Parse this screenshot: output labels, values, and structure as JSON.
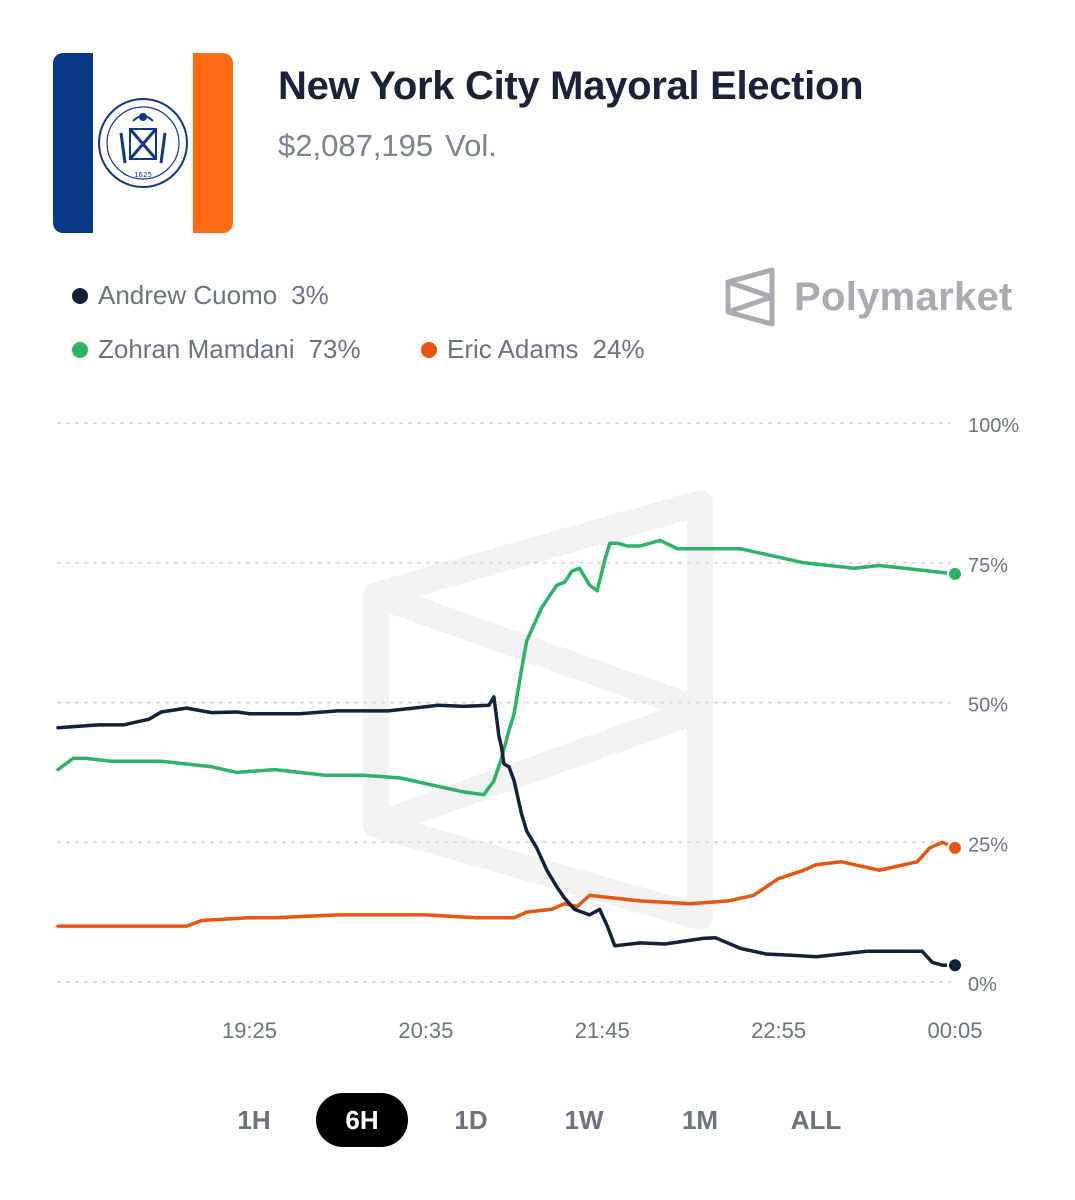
{
  "header": {
    "title": "New York City Mayoral Election",
    "volume": "$2,087,195",
    "volume_suffix": "Vol.",
    "flag_seal_text": "1625"
  },
  "brand": {
    "name": "Polymarket"
  },
  "colors": {
    "cuomo": "#14213d",
    "mamdani": "#2ab464",
    "adams": "#e9540f",
    "flag_blue": "#0b3889",
    "flag_orange": "#ff6a13",
    "grid": "#d9d9d9",
    "axis_text": "#6b7280"
  },
  "legend": [
    {
      "name": "Andrew Cuomo",
      "pct": "3%",
      "color": "#14213d"
    },
    {
      "name": "Zohran Mamdani",
      "pct": "73%",
      "color": "#2ab464"
    },
    {
      "name": "Eric Adams",
      "pct": "24%",
      "color": "#e9540f"
    }
  ],
  "timeframes": {
    "items": [
      "1H",
      "6H",
      "1D",
      "1W",
      "1M",
      "ALL"
    ],
    "active": "6H"
  },
  "chart_data": {
    "type": "line",
    "title": "",
    "xlabel": "",
    "ylabel": "",
    "x_ticks": [
      "19:25",
      "20:35",
      "21:45",
      "22:55",
      "00:05"
    ],
    "x_tick_minutes": [
      1165,
      1235,
      1305,
      1375,
      1445
    ],
    "xlim_minutes": [
      1089,
      1445
    ],
    "y_ticks": [
      "0%",
      "25%",
      "50%",
      "75%",
      "100%"
    ],
    "ylim": [
      0,
      100
    ],
    "grid": "horizontal dotted",
    "series": [
      {
        "name": "Andrew Cuomo",
        "color": "#14213d",
        "x": [
          1089,
          1105,
          1115,
          1125,
          1130,
          1140,
          1150,
          1160,
          1165,
          1175,
          1185,
          1200,
          1220,
          1230,
          1240,
          1250,
          1260,
          1262,
          1264,
          1265,
          1266,
          1268,
          1270,
          1273,
          1275,
          1279,
          1283,
          1287,
          1290,
          1294,
          1300,
          1304,
          1307,
          1310,
          1320,
          1330,
          1345,
          1350,
          1360,
          1370,
          1380,
          1390,
          1410,
          1425,
          1432,
          1436,
          1440,
          1445
        ],
        "y": [
          45.5,
          46,
          46,
          47,
          48.3,
          49,
          48.2,
          48.3,
          48,
          48,
          48,
          48.5,
          48.5,
          49,
          49.5,
          49.3,
          49.5,
          51,
          44,
          42,
          39,
          38.5,
          36,
          30,
          27,
          24,
          20,
          17,
          15,
          13,
          12,
          13,
          10,
          6.5,
          7,
          6.8,
          7.8,
          7.9,
          6,
          5,
          4.8,
          4.5,
          5.5,
          5.5,
          5.5,
          3.5,
          3,
          3
        ]
      },
      {
        "name": "Zohran Mamdani",
        "color": "#2ab464",
        "x": [
          1089,
          1095,
          1100,
          1110,
          1120,
          1130,
          1150,
          1160,
          1175,
          1195,
          1210,
          1225,
          1240,
          1250,
          1258,
          1262,
          1265,
          1268,
          1270,
          1273,
          1275,
          1278,
          1281,
          1284,
          1287,
          1290,
          1293,
          1296,
          1300,
          1303,
          1306,
          1308,
          1311,
          1315,
          1320,
          1328,
          1335,
          1340,
          1350,
          1360,
          1375,
          1385,
          1395,
          1405,
          1415,
          1425,
          1435,
          1445
        ],
        "y": [
          38,
          40,
          40,
          39.5,
          39.5,
          39.5,
          38.5,
          37.5,
          38,
          37,
          37,
          36.5,
          35,
          34,
          33.5,
          36,
          40,
          45,
          48,
          56,
          61,
          64,
          67,
          69,
          71,
          71.5,
          73.5,
          74,
          71,
          70,
          75.5,
          78.5,
          78.5,
          78,
          78,
          79,
          77.5,
          77.5,
          77.5,
          77.5,
          76,
          75,
          74.5,
          74,
          74.5,
          74,
          73.5,
          73
        ]
      },
      {
        "name": "Eric Adams",
        "color": "#e9540f",
        "x": [
          1089,
          1110,
          1140,
          1146,
          1165,
          1175,
          1200,
          1220,
          1235,
          1255,
          1270,
          1275,
          1285,
          1290,
          1295,
          1300,
          1310,
          1320,
          1340,
          1355,
          1365,
          1375,
          1385,
          1390,
          1400,
          1410,
          1415,
          1420,
          1425,
          1430,
          1435,
          1440,
          1445
        ],
        "y": [
          10,
          10,
          10,
          11,
          11.5,
          11.5,
          12,
          12,
          12,
          11.5,
          11.5,
          12.5,
          13,
          14,
          13.5,
          15.5,
          15,
          14.5,
          14,
          14.5,
          15.5,
          18.5,
          20,
          21,
          21.5,
          20.5,
          20,
          20.5,
          21,
          21.5,
          24,
          25,
          24
        ]
      }
    ]
  }
}
